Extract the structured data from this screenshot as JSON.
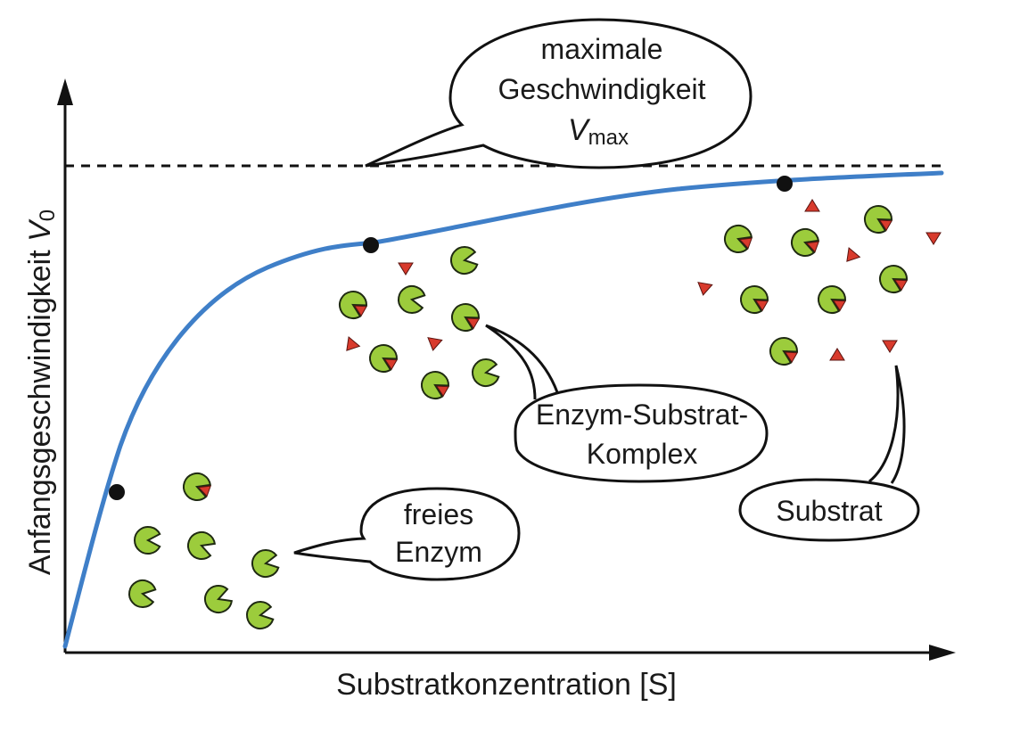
{
  "axes": {
    "x_label": "Substratkonzentration [S]",
    "y_label": "Anfangsgeschwindigkeit",
    "y_symbol": "V",
    "y_subscript": "0"
  },
  "vmax_callout": {
    "line1": "maximale",
    "line2": "Geschwindigkeit",
    "symbol": "V",
    "subscript": "max"
  },
  "callouts": {
    "free_enzyme": [
      "freies",
      "Enzym"
    ],
    "complex": [
      "Enzym-Substrat-",
      "Komplex"
    ],
    "substrate": "Substrat"
  },
  "colors": {
    "curve": "#3f7fc8",
    "enzyme_fill": "#9ccc3c",
    "enzyme_stroke": "#1f2a12",
    "substrate": "#d83a2c",
    "axis": "#111111",
    "point": "#111111"
  },
  "icons": [
    "enzyme-icon",
    "substrate-icon",
    "enzyme-substrate-complex-icon"
  ]
}
